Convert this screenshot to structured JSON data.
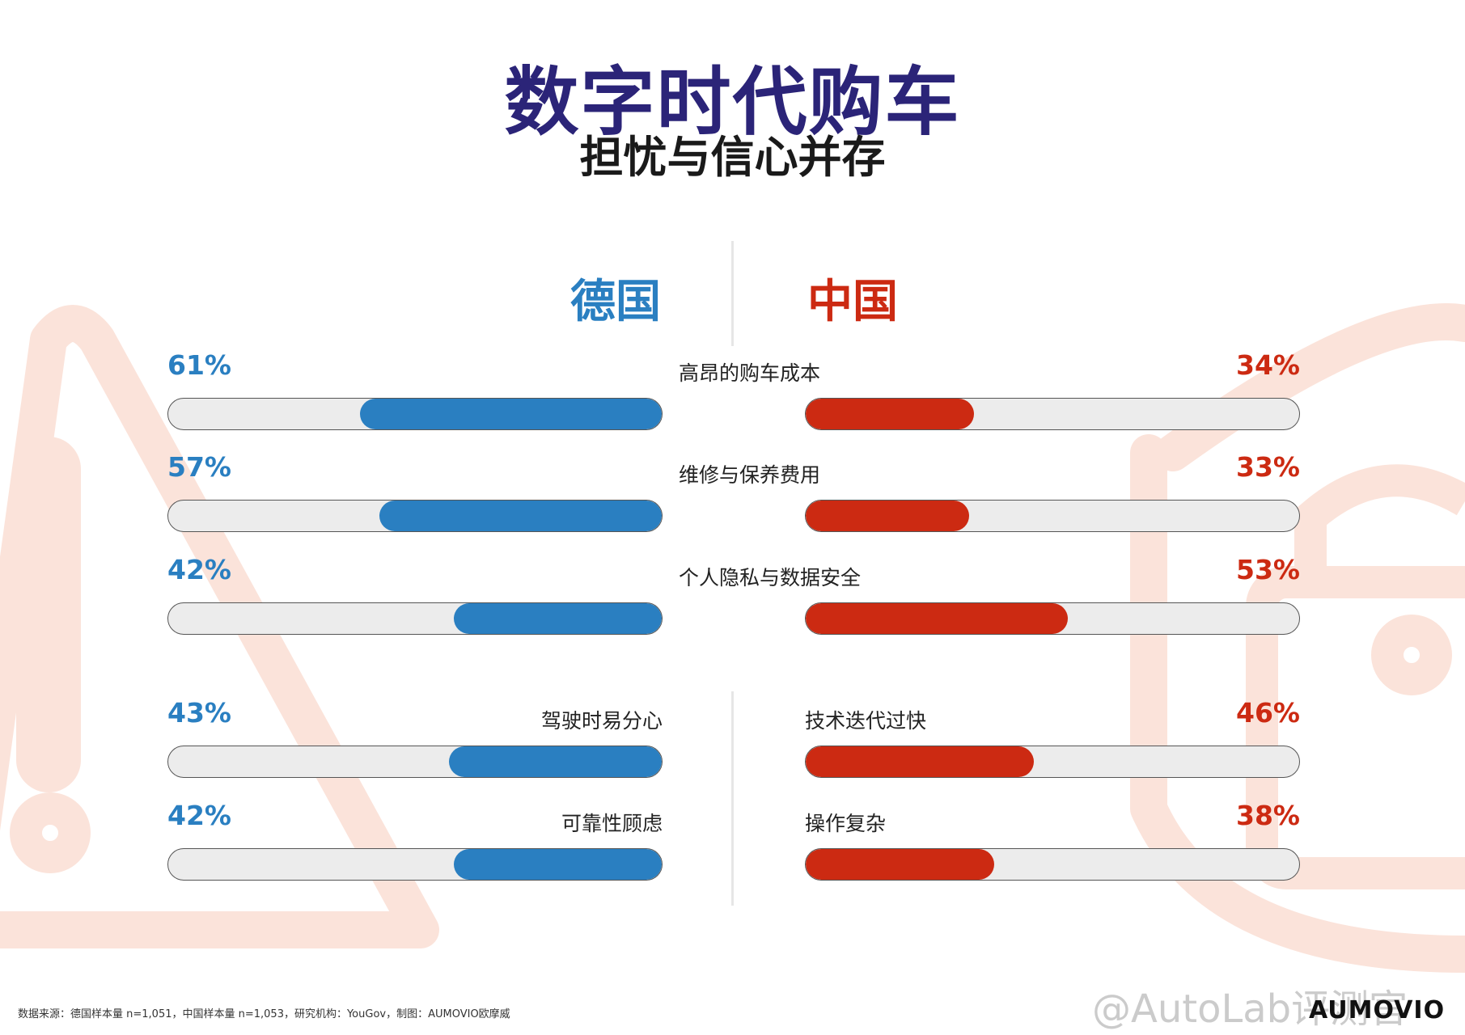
{
  "header": {
    "title": "数字时代购车",
    "subtitle": "担忧与信心并存"
  },
  "colors": {
    "title": "#2b2478",
    "germany": "#2a7fc1",
    "china": "#cc2a12",
    "track": "#ececec",
    "decoration": "#fbe3da"
  },
  "chart_data": {
    "type": "bar",
    "unit": "%",
    "series": [
      {
        "name": "德国",
        "color": "#2a7fc1",
        "values": [
          61,
          57,
          42,
          43,
          42
        ]
      },
      {
        "name": "中国",
        "color": "#cc2a12",
        "values": [
          34,
          33,
          53,
          46,
          38
        ]
      }
    ],
    "rows": [
      {
        "label": "高昂的购车成本",
        "germany": {
          "label": "高昂的购车成本",
          "pct": "61%"
        },
        "china": {
          "label": "高昂的购车成本",
          "pct": "34%"
        },
        "shared": true
      },
      {
        "label": "维修与保养费用",
        "germany": {
          "label": "维修与保养费用",
          "pct": "57%"
        },
        "china": {
          "label": "维修与保养费用",
          "pct": "33%"
        },
        "shared": true
      },
      {
        "label": "个人隐私与数据安全",
        "germany": {
          "label": "个人隐私与数据安全",
          "pct": "42%"
        },
        "china": {
          "label": "个人隐私与数据安全",
          "pct": "53%"
        },
        "shared": true
      },
      {
        "germany": {
          "label": "驾驶时易分心",
          "pct": "43%"
        },
        "china": {
          "label": "技术迭代过快",
          "pct": "46%"
        },
        "shared": false
      },
      {
        "germany": {
          "label": "可靠性顾虑",
          "pct": "42%"
        },
        "china": {
          "label": "操作复杂",
          "pct": "38%"
        },
        "shared": false
      }
    ],
    "xlim": [
      0,
      100
    ]
  },
  "footer": {
    "source": "数据来源：德国样本量 n=1,051，中国样本量 n=1,053，研究机构：YouGov，制图：AUMOVIO欧摩威",
    "watermark": "@AutoLab评测官",
    "logo": "AUMOVIO"
  }
}
